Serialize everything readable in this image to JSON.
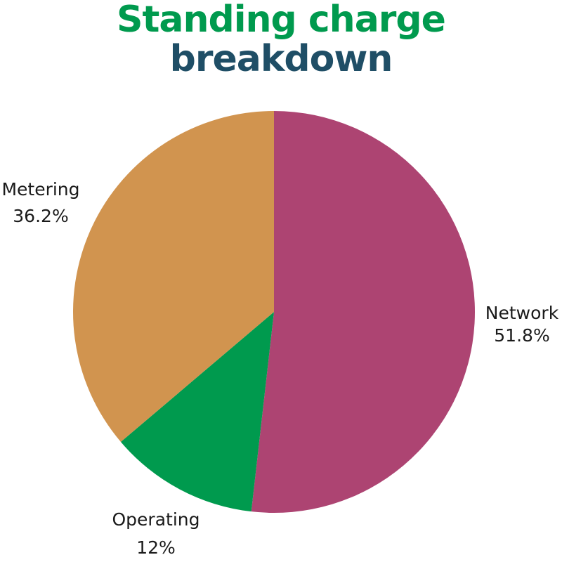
{
  "chart_data": {
    "type": "pie",
    "title_part1": "Standing charge",
    "title_part2": "breakdown",
    "slices": [
      {
        "label": "Network",
        "value": 51.8,
        "value_text": "51.8%",
        "color": "#AD4472"
      },
      {
        "label": "Operating",
        "value": 12,
        "value_text": "12%",
        "color": "#009A4E"
      },
      {
        "label": "Metering",
        "value": 36.2,
        "value_text": "36.2%",
        "color": "#D1944F"
      }
    ],
    "title_colors": {
      "part1": "#009A4E",
      "part2": "#1F4E66"
    }
  }
}
